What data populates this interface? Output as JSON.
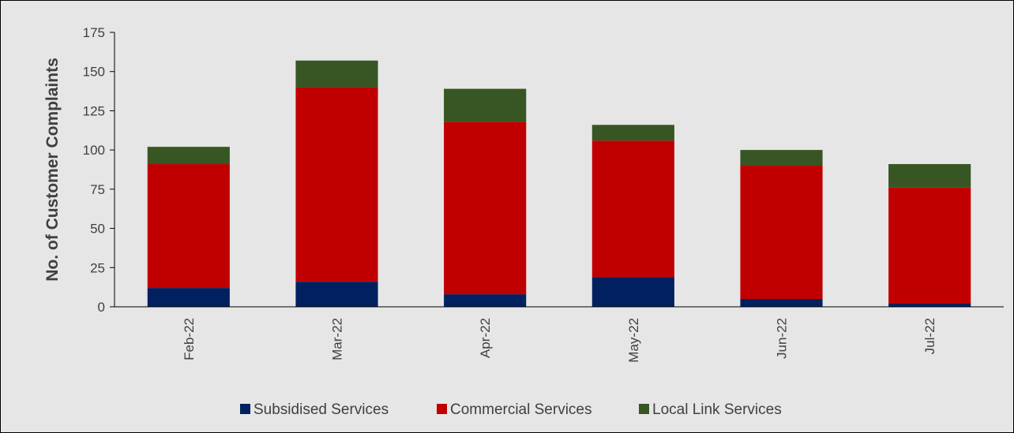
{
  "chart_data": {
    "type": "bar",
    "stacked": true,
    "categories": [
      "Feb-22",
      "Mar-22",
      "Apr-22",
      "May-22",
      "Jun-22",
      "Jul-22"
    ],
    "series": [
      {
        "name": "Subsidised Services",
        "color": "#002060",
        "values": [
          12,
          16,
          8,
          19,
          5,
          2
        ]
      },
      {
        "name": "Commercial Services",
        "color": "#c00000",
        "values": [
          79,
          124,
          110,
          87,
          85,
          74
        ]
      },
      {
        "name": "Local Link Services",
        "color": "#375623",
        "values": [
          11,
          17,
          21,
          10,
          10,
          15
        ]
      }
    ],
    "title": "",
    "xlabel": "",
    "ylabel": "No. of Customer Complaints",
    "ylim": [
      0,
      175
    ],
    "yticks": [
      0,
      25,
      50,
      75,
      100,
      125,
      150,
      175
    ],
    "grid": false,
    "legend_position": "bottom",
    "background": "#e7e6e6"
  }
}
